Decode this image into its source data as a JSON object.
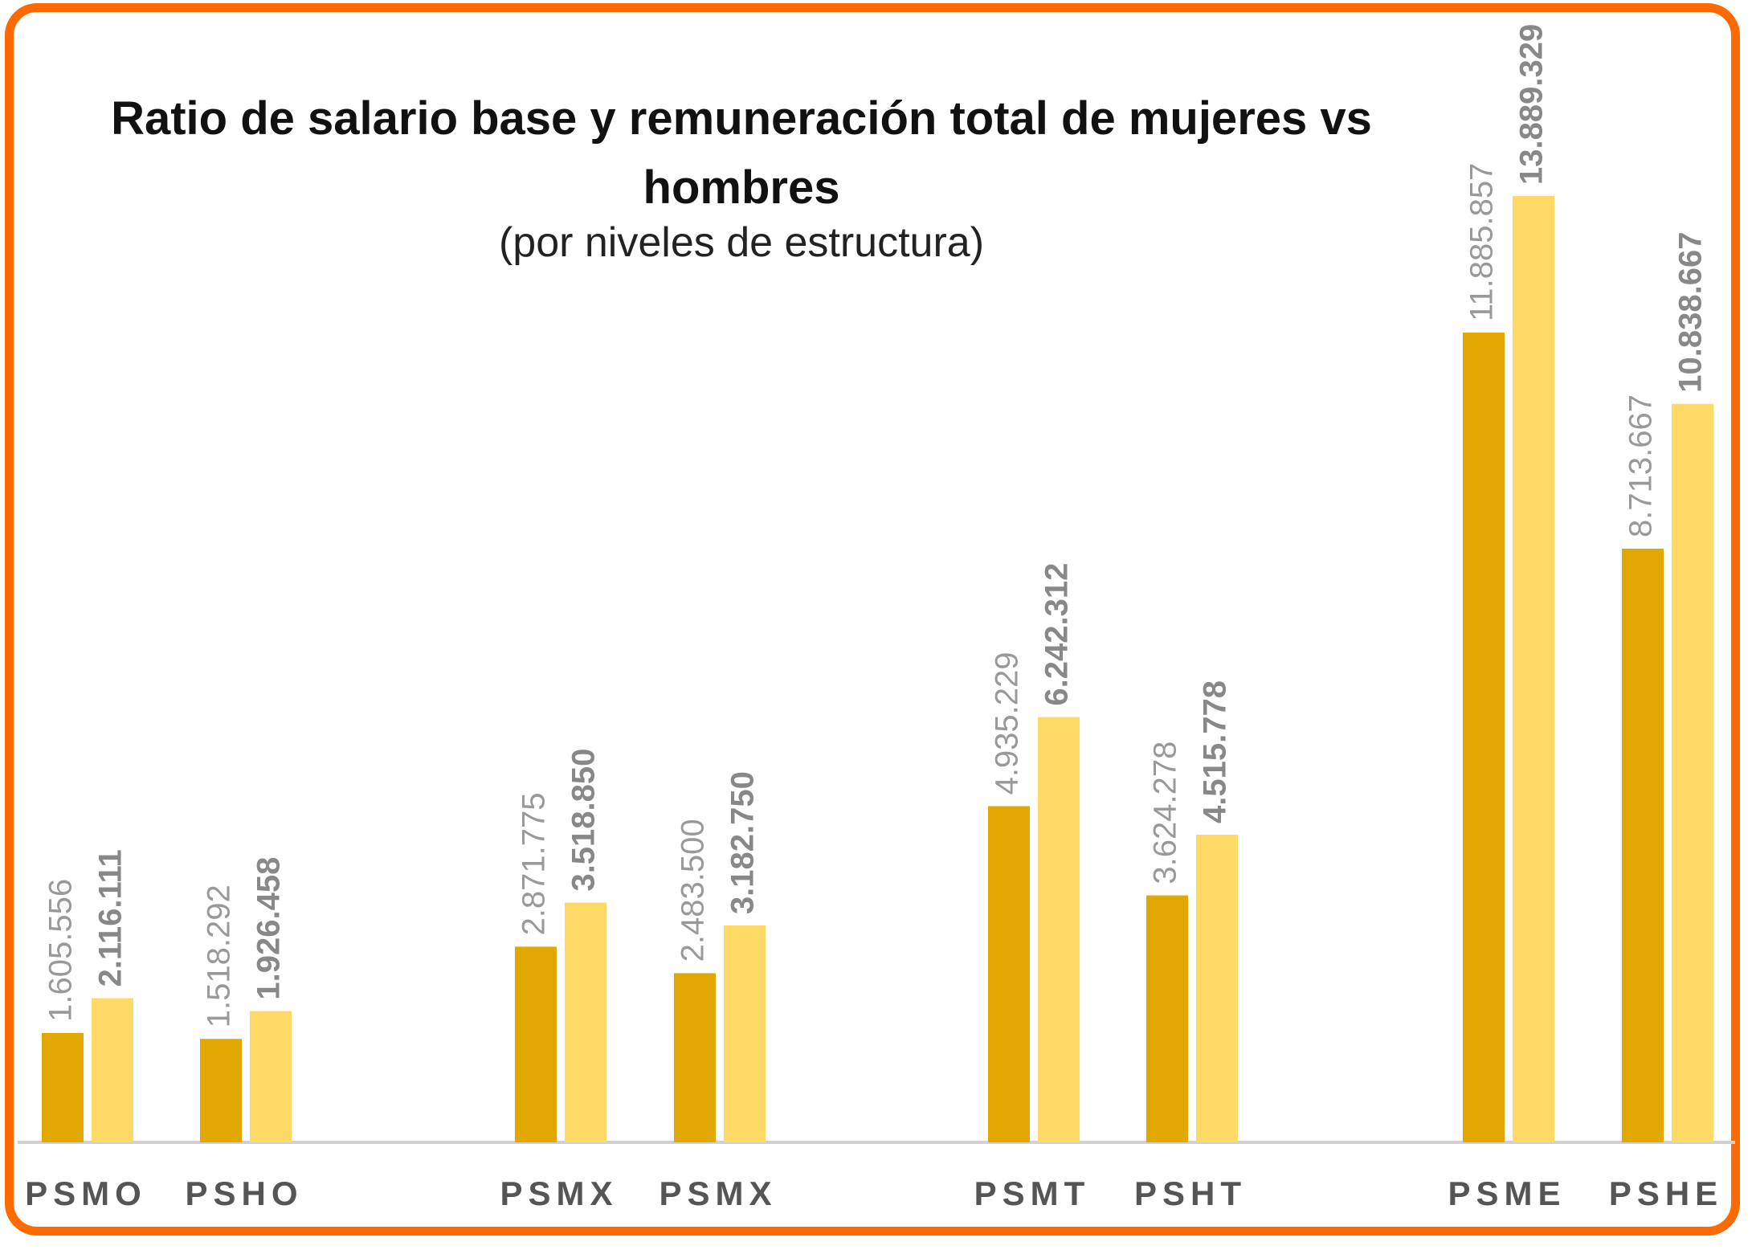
{
  "chart_data": {
    "type": "bar",
    "title": "Ratio de salario base y remuneración total de mujeres vs hombres",
    "subtitle": "(por niveles de estructura)",
    "categories": [
      "PSMO",
      "PSHO",
      "PSMX",
      "PSMX",
      "PSMT",
      "PSHT",
      "PSME",
      "PSHE"
    ],
    "series": [
      {
        "color": "#e0a800",
        "values": [
          1605556,
          1518292,
          2871775,
          2483500,
          4935229,
          3624278,
          11885857,
          8713667
        ],
        "value_labels": [
          "1.605.556",
          "1.518.292",
          "2.871.775",
          "2.483.500",
          "4.935.229",
          "3.624.278",
          "11.885.857",
          "8.713.667"
        ]
      },
      {
        "color": "#ffd966",
        "values": [
          2116111,
          1926458,
          3518850,
          3182750,
          6242312,
          4515778,
          13889329,
          10838667
        ],
        "value_labels": [
          "2.116.111",
          "1.926.458",
          "3.518.850",
          "3.182.750",
          "6.242.312",
          "4.515.778",
          "13.889.329",
          "10.838.667"
        ]
      }
    ]
  }
}
